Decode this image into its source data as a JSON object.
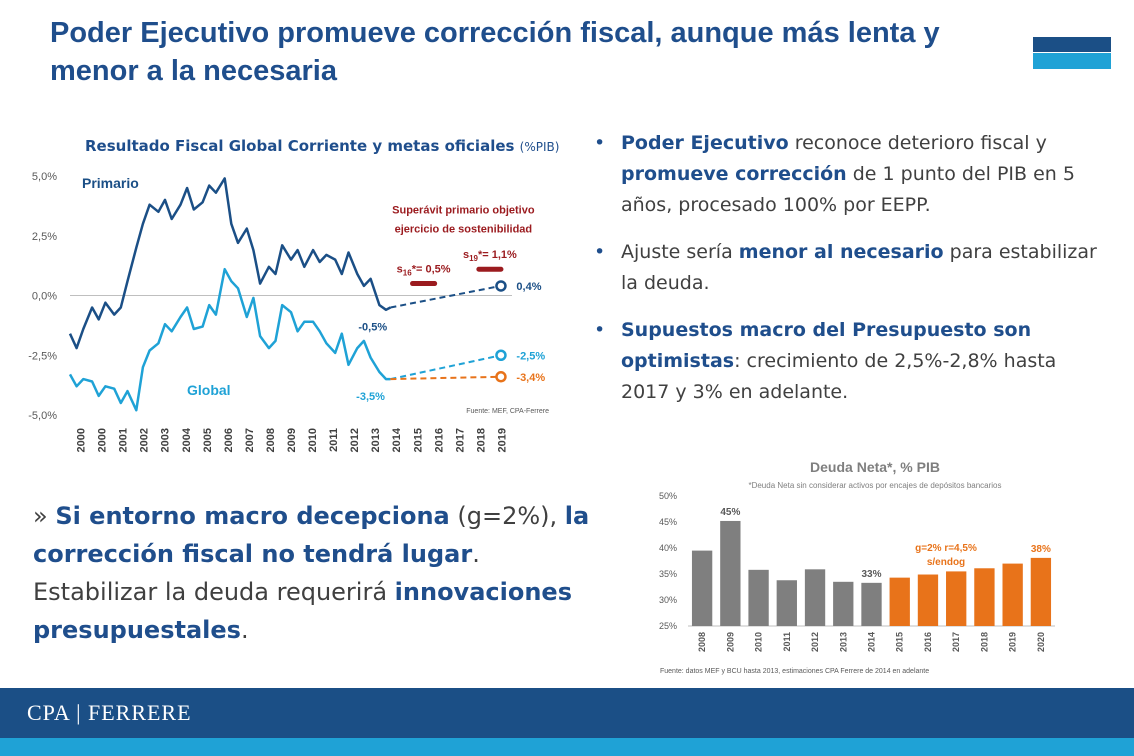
{
  "slide": {
    "title": "Poder Ejecutivo promueve corrección fiscal, aunque más lenta y menor a la necesaria",
    "logo_text": "CPA | FERRERE",
    "colors": {
      "navy": "#1b4f86",
      "title": "#1f4e8c",
      "cyan": "#1fa2d6",
      "orange": "#e8731a",
      "red": "#9b1b1f",
      "gray": "#7f7f7f"
    }
  },
  "bullets": [
    {
      "parts": [
        {
          "t": "Poder Ejecutivo",
          "b": true
        },
        {
          "t": " reconoce deterioro fiscal y "
        },
        {
          "t": "promueve corrección",
          "b": true
        },
        {
          "t": " de 1 punto del PIB en 5 años, procesado 100% por EEPP."
        }
      ]
    },
    {
      "parts": [
        {
          "t": "Ajuste sería "
        },
        {
          "t": "menor al necesario",
          "b": true
        },
        {
          "t": " para estabilizar la deuda."
        }
      ]
    },
    {
      "parts": [
        {
          "t": "Supuestos macro del Presupuesto son optimistas",
          "b": true
        },
        {
          "t": ": crecimiento de 2,5%-2,8% hasta 2017 y 3% en adelante."
        }
      ]
    }
  ],
  "callout": {
    "parts": [
      {
        "t": "» "
      },
      {
        "t": "Si entorno macro decepciona",
        "b": true
      },
      {
        "t": " (g=2%), "
      },
      {
        "t": "la corrección fiscal no tendrá lugar",
        "b": true
      },
      {
        "t": ". Estabilizar la deuda requerirá "
      },
      {
        "t": "innovaciones presupuestales",
        "b": true
      },
      {
        "t": "."
      }
    ]
  },
  "chart_data": [
    {
      "type": "line",
      "title": "Resultado Fiscal Global Corriente y metas oficiales",
      "title_unit": "(%PIB)",
      "ylim": [
        -5,
        5
      ],
      "xlim": [
        2000,
        2020
      ],
      "y_ticks": [
        "5,0%",
        "2,5%",
        "0,0%",
        "-2,5%",
        "-5,0%"
      ],
      "y_tick_values": [
        5,
        2.5,
        0,
        -2.5,
        -5
      ],
      "x_ticks": [
        "2000",
        "2000",
        "2001",
        "2002",
        "2003",
        "2004",
        "2005",
        "2006",
        "2007",
        "2008",
        "2009",
        "2010",
        "2011",
        "2012",
        "2013",
        "2014",
        "2015",
        "2016",
        "2017",
        "2018",
        "2019"
      ],
      "source": "Fuente: MEF, CPA-Ferrere",
      "series": [
        {
          "name": "Primario",
          "color": "#1b4f86",
          "x": [
            2000,
            2000.3,
            2000.6,
            2001,
            2001.3,
            2001.6,
            2002,
            2002.3,
            2002.6,
            2003,
            2003.3,
            2003.6,
            2004,
            2004.3,
            2004.6,
            2005,
            2005.3,
            2005.6,
            2006,
            2006.3,
            2006.6,
            2007,
            2007.3,
            2007.6,
            2008,
            2008.3,
            2008.6,
            2009,
            2009.3,
            2009.6,
            2010,
            2010.3,
            2010.6,
            2011,
            2011.3,
            2011.6,
            2012,
            2012.3,
            2012.6,
            2013,
            2013.3,
            2013.6,
            2014,
            2014.3,
            2014.5
          ],
          "values": [
            -1.6,
            -2.2,
            -1.4,
            -0.5,
            -1.0,
            -0.3,
            -0.8,
            -0.5,
            0.6,
            2.0,
            3.0,
            3.8,
            3.5,
            4.0,
            3.2,
            3.8,
            4.5,
            3.6,
            3.9,
            4.6,
            4.3,
            4.9,
            3.0,
            2.2,
            2.8,
            1.9,
            0.5,
            1.2,
            0.9,
            2.1,
            1.5,
            1.9,
            1.2,
            1.9,
            1.4,
            1.7,
            1.5,
            0.9,
            1.8,
            0.9,
            0.4,
            0.7,
            -0.4,
            -0.6,
            -0.5
          ]
        },
        {
          "name": "Global",
          "color": "#1fa2d6",
          "x": [
            2000,
            2000.3,
            2000.6,
            2001,
            2001.3,
            2001.6,
            2002,
            2002.3,
            2002.6,
            2003,
            2003.3,
            2003.6,
            2004,
            2004.3,
            2004.6,
            2005,
            2005.3,
            2005.6,
            2006,
            2006.3,
            2006.6,
            2007,
            2007.3,
            2007.6,
            2008,
            2008.3,
            2008.6,
            2009,
            2009.3,
            2009.6,
            2010,
            2010.3,
            2010.6,
            2011,
            2011.3,
            2011.6,
            2012,
            2012.3,
            2012.6,
            2013,
            2013.3,
            2013.6,
            2014,
            2014.3,
            2014.5
          ],
          "values": [
            -3.3,
            -3.8,
            -3.5,
            -3.6,
            -4.2,
            -3.8,
            -3.9,
            -4.5,
            -4.0,
            -4.8,
            -3.0,
            -2.3,
            -2.0,
            -1.2,
            -1.5,
            -0.9,
            -0.5,
            -1.4,
            -1.3,
            -0.4,
            -0.8,
            1.1,
            0.6,
            0.3,
            -0.9,
            -0.1,
            -1.7,
            -2.2,
            -1.9,
            -0.4,
            -0.7,
            -1.5,
            -1.1,
            -1.1,
            -1.5,
            -2.0,
            -2.4,
            -1.6,
            -2.9,
            -2.2,
            -1.9,
            -2.6,
            -3.2,
            -3.5,
            -3.5
          ]
        },
        {
          "name": "",
          "dashed": true,
          "color": "#1b4f86",
          "x": [
            2014.5,
            2019.5
          ],
          "values": [
            -0.5,
            0.4
          ]
        },
        {
          "name": "",
          "dashed": true,
          "color": "#1fa2d6",
          "x": [
            2014.5,
            2019.5
          ],
          "values": [
            -3.5,
            -2.5
          ]
        },
        {
          "name": "",
          "dashed": true,
          "color": "#e8731a",
          "x": [
            2014.5,
            2019.5
          ],
          "values": [
            -3.5,
            -3.4
          ]
        }
      ],
      "targets": [
        {
          "label_base": "s",
          "label_sub": "16",
          "label_rest": "*= 0,5%",
          "x": [
            2015.5,
            2016.5
          ],
          "value": 0.5,
          "color": "#9b1b1f"
        },
        {
          "label_base": "s",
          "label_sub": "19",
          "label_rest": "*= 1,1%",
          "x": [
            2018.5,
            2019.5
          ],
          "value": 1.1,
          "color": "#9b1b1f"
        }
      ],
      "annotations": [
        {
          "text": "Superávit primario objetivo",
          "x": 2017.8,
          "y": 3.6,
          "color": "#9b1b1f",
          "anchor": "middle"
        },
        {
          "text": "ejercicio de sostenibilidad",
          "x": 2017.8,
          "y": 2.8,
          "color": "#9b1b1f",
          "anchor": "middle"
        },
        {
          "text": "0,4%",
          "x": 2020.2,
          "y": 0.4,
          "color": "#1b4f86",
          "anchor": "start"
        },
        {
          "text": "-0,5%",
          "x": 2013.7,
          "y": -1.3,
          "color": "#1b4f86",
          "anchor": "middle"
        },
        {
          "text": "-2,5%",
          "x": 2020.2,
          "y": -2.5,
          "color": "#1fa2d6",
          "anchor": "start"
        },
        {
          "text": "-3,4%",
          "x": 2020.2,
          "y": -3.4,
          "color": "#e8731a",
          "anchor": "start"
        },
        {
          "text": "-3,5%",
          "x": 2013.6,
          "y": -4.2,
          "color": "#1fa2d6",
          "anchor": "middle"
        }
      ]
    },
    {
      "type": "bar",
      "title": "Deuda Neta*, % PIB",
      "subtitle": "*Deuda Neta sin considerar activos por encajes de depósitos bancarios",
      "categories": [
        "2008",
        "2009",
        "2010",
        "2011",
        "2012",
        "2013",
        "2014",
        "2015",
        "2016",
        "2017",
        "2018",
        "2019",
        "2020"
      ],
      "values": [
        39.5,
        45.2,
        35.8,
        33.8,
        35.9,
        33.5,
        33.3,
        34.3,
        34.9,
        35.5,
        36.1,
        37.0,
        38.1
      ],
      "colors": [
        "#7f7f7f",
        "#7f7f7f",
        "#7f7f7f",
        "#7f7f7f",
        "#7f7f7f",
        "#7f7f7f",
        "#7f7f7f",
        "#e8731a",
        "#e8731a",
        "#e8731a",
        "#e8731a",
        "#e8731a",
        "#e8731a"
      ],
      "ylim": [
        25,
        50
      ],
      "y_ticks": [
        "50%",
        "45%",
        "40%",
        "35%",
        "30%",
        "25%"
      ],
      "y_tick_values": [
        50,
        45,
        40,
        35,
        30,
        25
      ],
      "data_labels": {
        "2009": "45%",
        "2014": "33%",
        "2020": "38%"
      },
      "annotation": [
        "g=2% r=4,5%",
        "s/endog"
      ],
      "annotation_color": "#e8731a",
      "source": "Fuente:   datos MEF y BCU hasta 2013, estimaciones CPA Ferrere de 2014 en adelante"
    }
  ]
}
